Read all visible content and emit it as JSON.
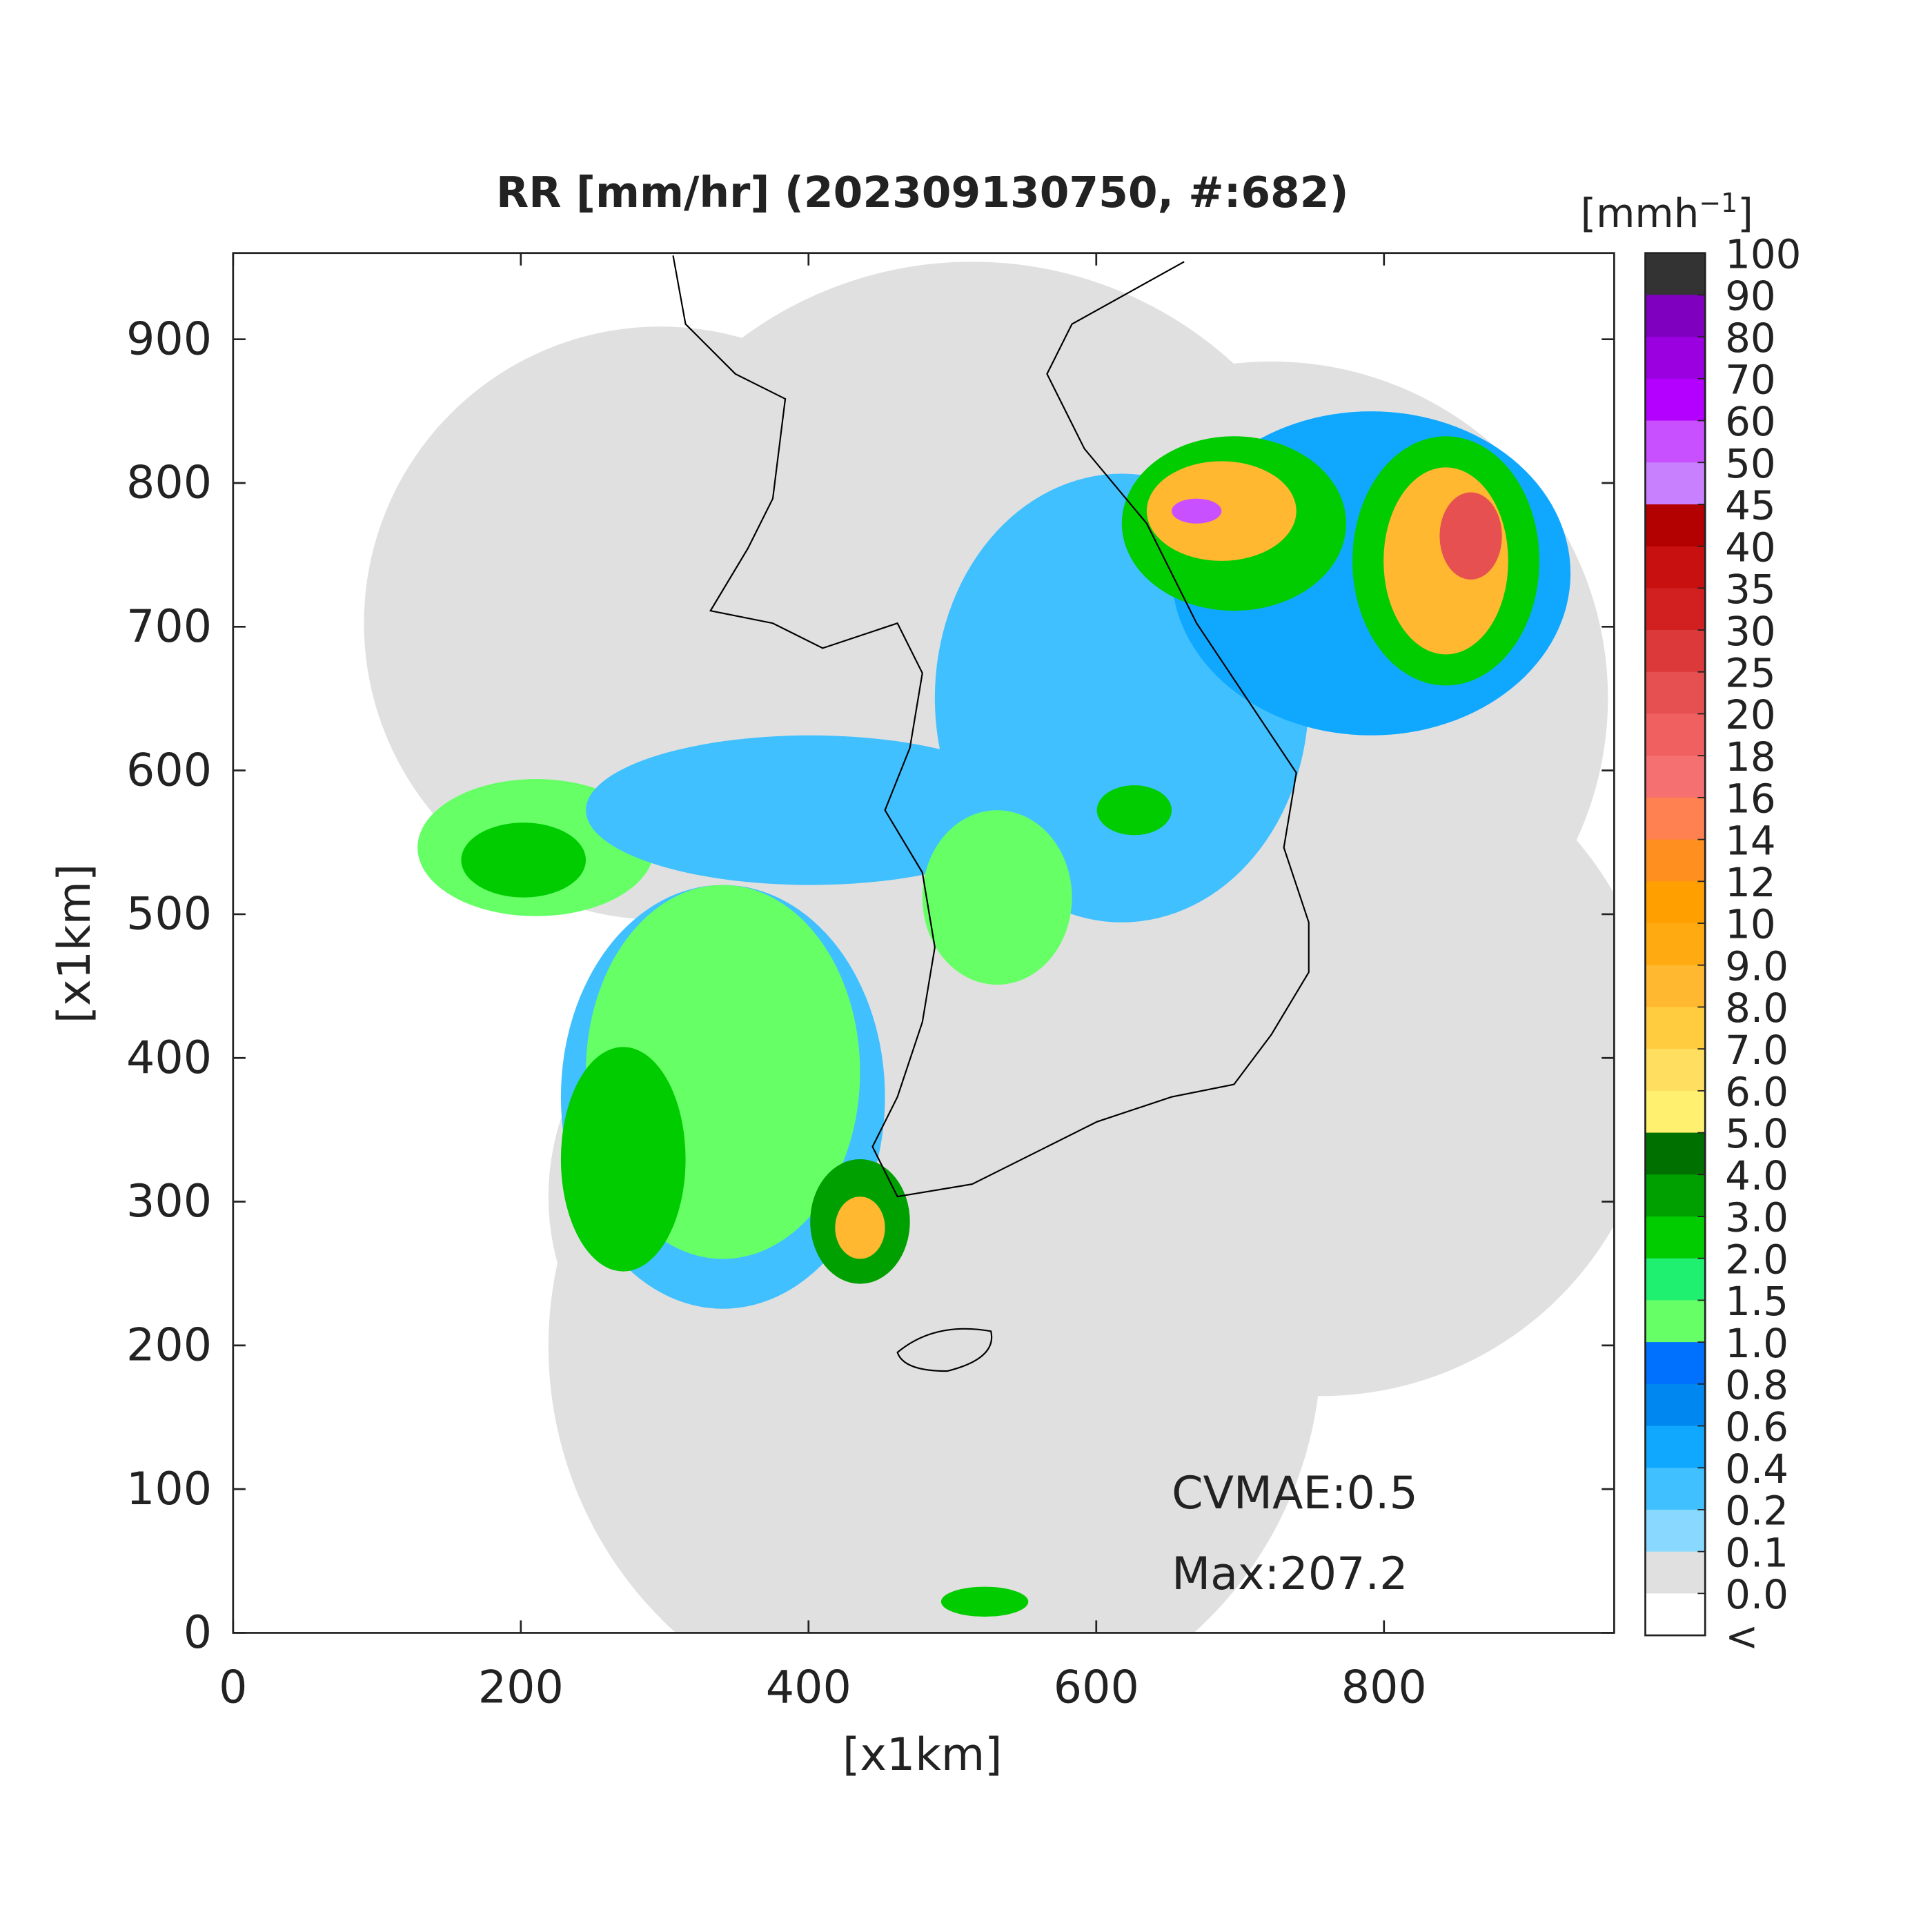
{
  "title": "RR [mm/hr] (202309130750, #:682)",
  "x_axis": {
    "label": "[x1km]",
    "lim": [
      0,
      960
    ],
    "ticks": [
      0,
      200,
      400,
      600,
      800
    ]
  },
  "y_axis": {
    "label": "[x1km]",
    "lim": [
      0,
      960
    ],
    "ticks": [
      0,
      100,
      200,
      300,
      400,
      500,
      600,
      700,
      800,
      900
    ]
  },
  "colorbar": {
    "unit_parts": [
      "[mmh",
      "−1",
      "]"
    ],
    "ticks": [
      100,
      90,
      80,
      70,
      60,
      50,
      45,
      40,
      35,
      30,
      25,
      20,
      18,
      16,
      14,
      12,
      10,
      {
        "value": 9,
        "label": "9.0"
      },
      {
        "value": 8,
        "label": "8.0"
      },
      {
        "value": 7,
        "label": "7.0"
      },
      {
        "value": 6,
        "label": "6.0"
      },
      {
        "value": 5,
        "label": "5.0"
      },
      {
        "value": 4,
        "label": "4.0"
      },
      {
        "value": 3,
        "label": "3.0"
      },
      {
        "value": 2,
        "label": "2.0"
      },
      1.5,
      {
        "value": 1,
        "label": "1.0"
      },
      0.8,
      0.6,
      0.4,
      0.2,
      0.1,
      {
        "value": 0,
        "label": "0.0"
      },
      "<"
    ],
    "colors": [
      "#333333",
      "#8000c0",
      "#9a00e0",
      "#b400ff",
      "#c850ff",
      "#c880ff",
      "#b30000",
      "#c81010",
      "#d22020",
      "#dc3a3a",
      "#e65050",
      "#f06060",
      "#f57070",
      "#ff8050",
      "#ff9020",
      "#ffa000",
      "#ffaa10",
      "#ffb830",
      "#ffcc40",
      "#ffde60",
      "#fff070",
      "#007000",
      "#00a000",
      "#00cc00",
      "#20f070",
      "#66ff66",
      "#0070ff",
      "#0088f0",
      "#10a8ff",
      "#40c0ff",
      "#88d8ff",
      "#e0e0e0",
      "#ffffff"
    ]
  },
  "annotations": [
    "CVMAE:0.5",
    "Max:207.2"
  ]
}
